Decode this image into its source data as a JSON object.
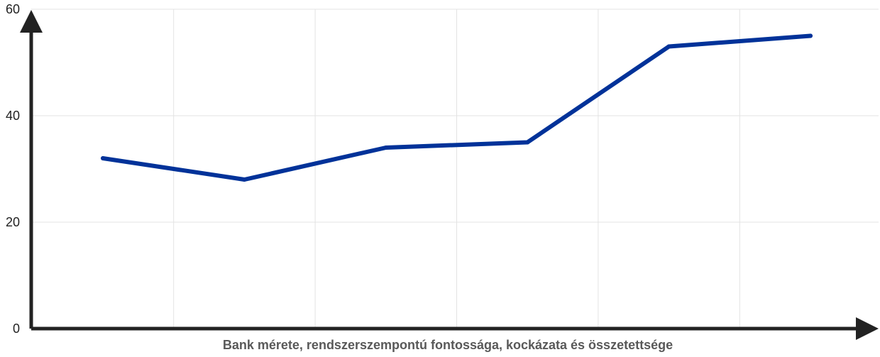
{
  "chart_data": {
    "type": "line",
    "title": "",
    "xlabel": "Bank mérete, rendszerszempontú fontossága, kockázata és összetettsége",
    "ylabel": "",
    "ylim": [
      0,
      60
    ],
    "yticks": [
      0,
      20,
      40,
      60
    ],
    "grid": true,
    "x": [
      1,
      2,
      3,
      4,
      5,
      6
    ],
    "series": [
      {
        "values": [
          32,
          28,
          34,
          35,
          53,
          55
        ],
        "color": "#003299"
      }
    ],
    "axis_color": "#222222"
  }
}
